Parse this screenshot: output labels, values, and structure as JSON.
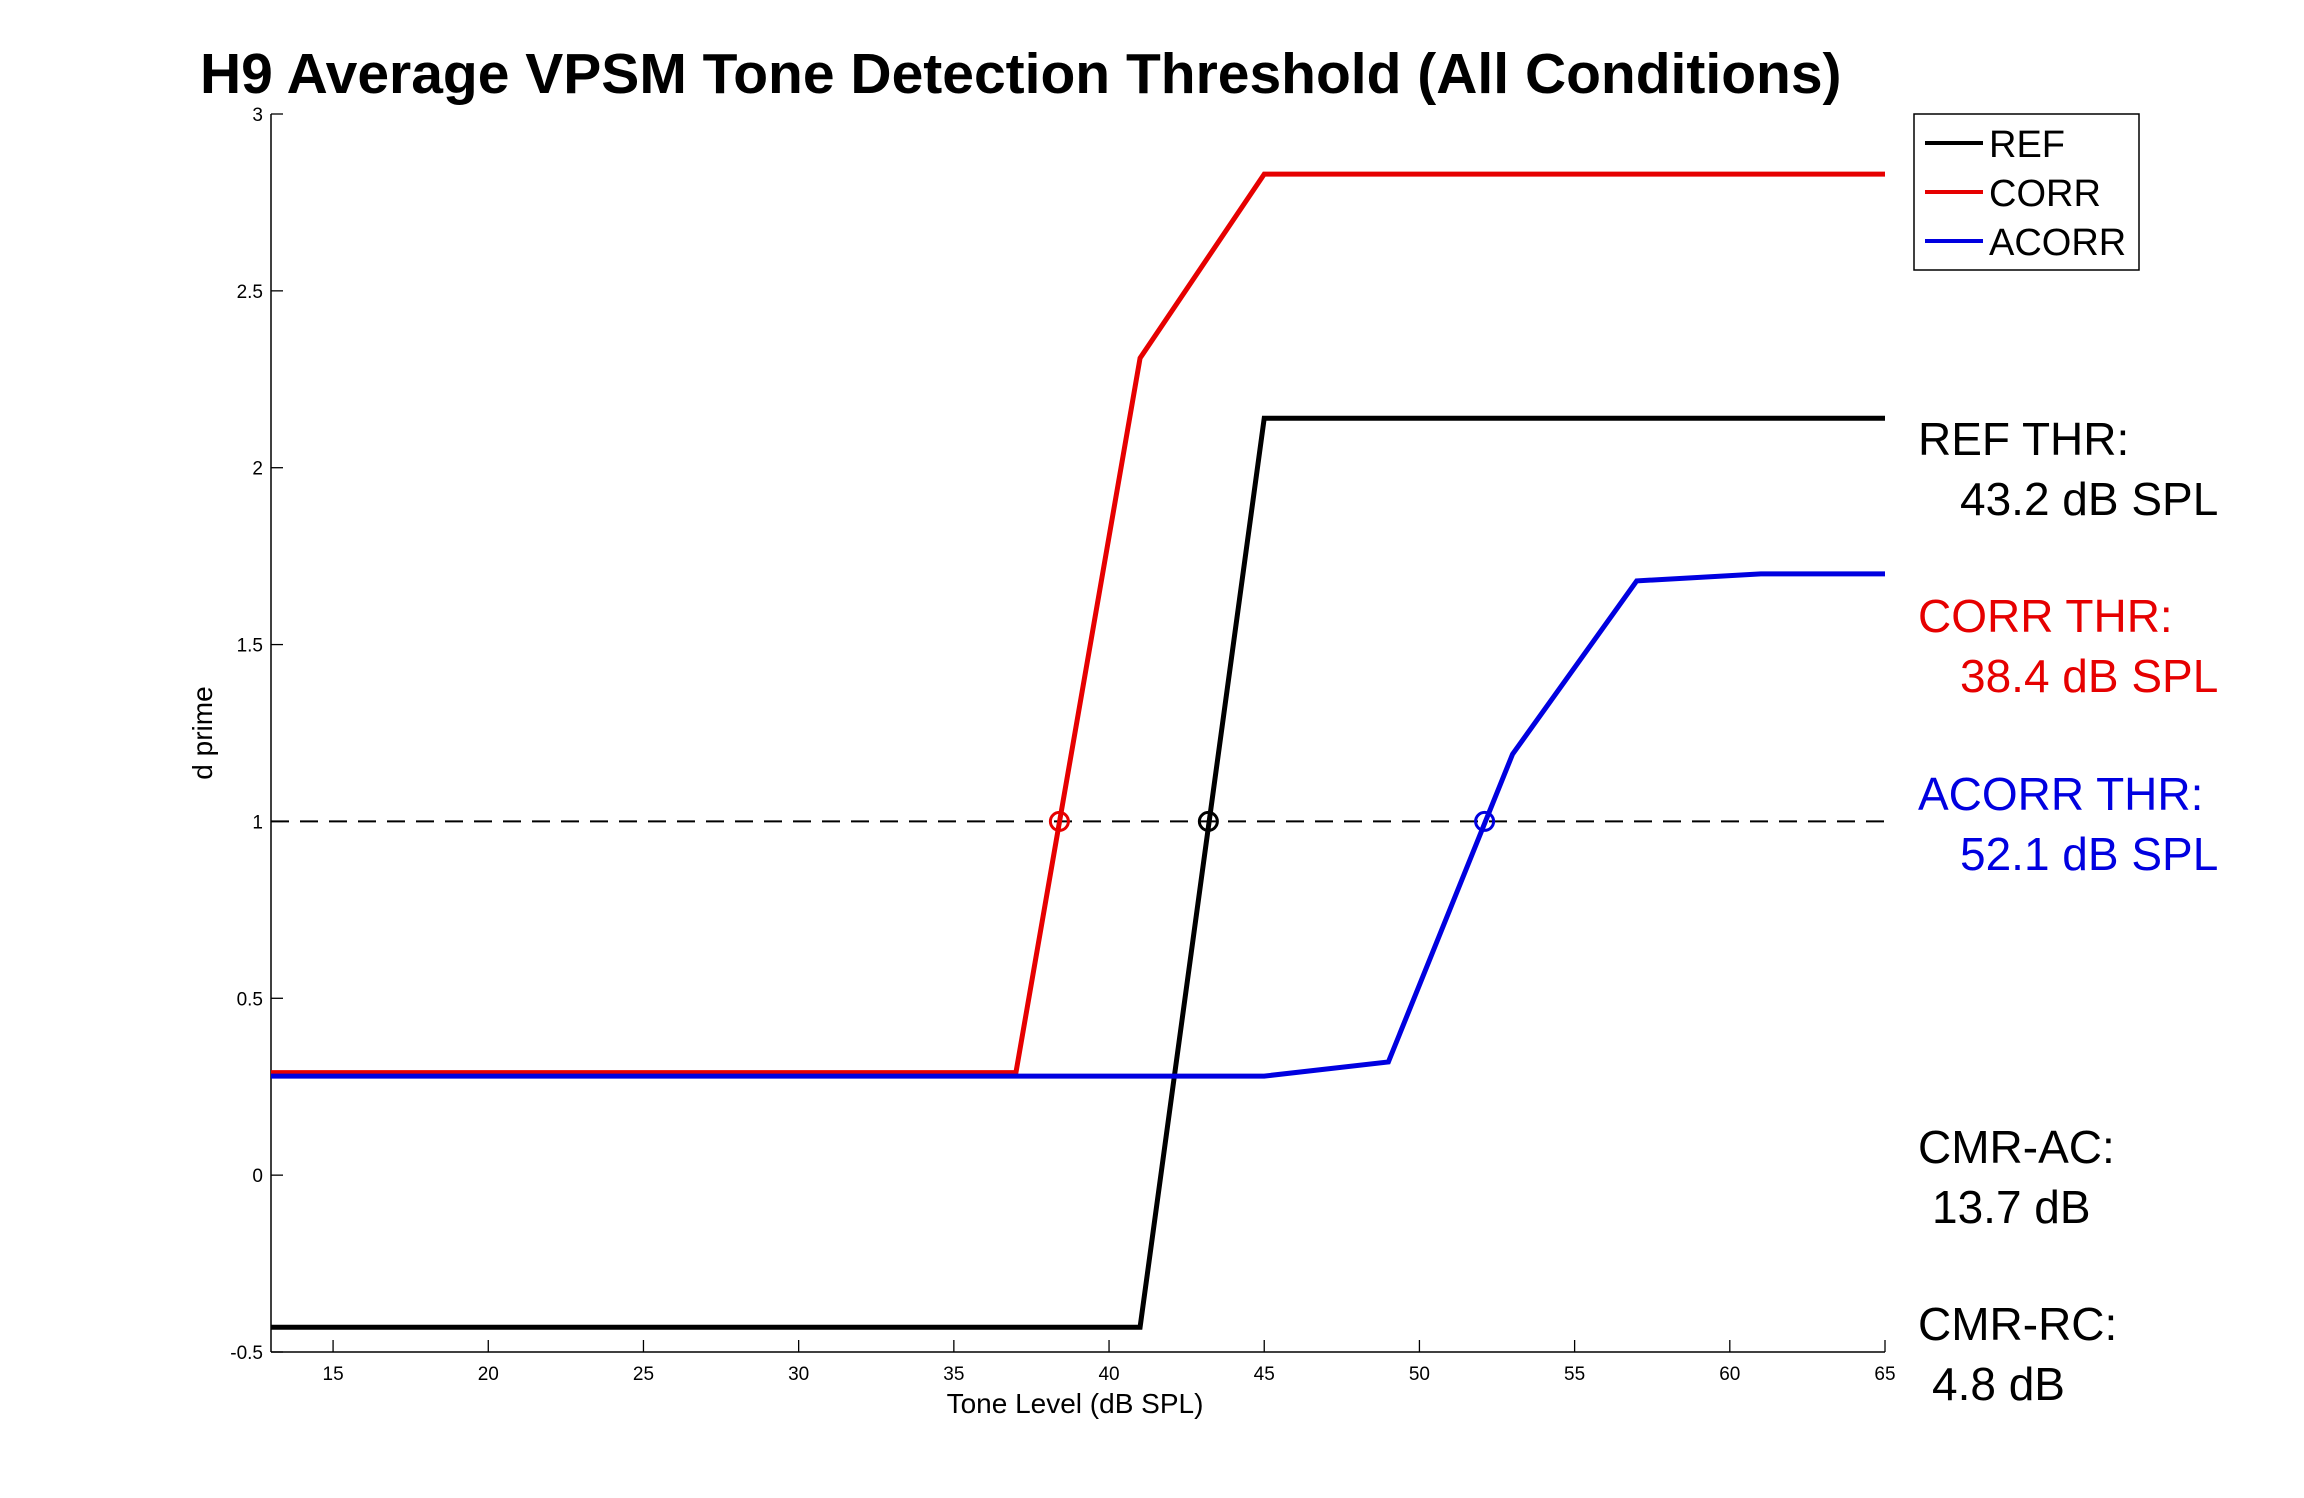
{
  "chart_data": {
    "type": "line",
    "title": "H9 Average VPSM Tone Detection Threshold (All Conditions)",
    "xlabel": "Tone Level (dB SPL)",
    "ylabel": "d prime",
    "xlim": [
      13,
      65
    ],
    "ylim": [
      -0.5,
      3
    ],
    "xticks": [
      "15",
      "20",
      "25",
      "30",
      "35",
      "40",
      "45",
      "50",
      "55",
      "60",
      "65"
    ],
    "yticks": [
      "-0.5",
      "0",
      "0.5",
      "1",
      "1.5",
      "2",
      "2.5",
      "3"
    ],
    "grid": false,
    "legend_position": "top-right",
    "reference_line": {
      "y": 1,
      "style": "dashed",
      "color": "#000000"
    },
    "series": [
      {
        "name": "REF",
        "color": "#000000",
        "x": [
          13,
          41,
          45,
          65
        ],
        "y": [
          -0.43,
          -0.43,
          2.14,
          2.14
        ],
        "threshold": {
          "x": 43.2,
          "y": 1
        }
      },
      {
        "name": "CORR",
        "color": "#e60000",
        "x": [
          13,
          37,
          41,
          45,
          65
        ],
        "y": [
          0.29,
          0.29,
          2.31,
          2.83,
          2.83
        ],
        "threshold": {
          "x": 38.4,
          "y": 1
        }
      },
      {
        "name": "ACORR",
        "color": "#0000e0",
        "x": [
          13,
          45,
          49,
          53,
          57,
          61,
          65
        ],
        "y": [
          0.28,
          0.28,
          0.32,
          1.19,
          1.68,
          1.7,
          1.7
        ],
        "threshold": {
          "x": 52.1,
          "y": 1
        }
      }
    ],
    "annotations": [
      {
        "line1": "REF THR:",
        "line2": "43.2 dB SPL",
        "color": "#000000"
      },
      {
        "line1": "CORR THR:",
        "line2": "38.4 dB SPL",
        "color": "#e60000"
      },
      {
        "line1": "ACORR THR:",
        "line2": "52.1 dB SPL",
        "color": "#0000e0"
      },
      {
        "line1": "CMR-AC:",
        "line2": "13.7 dB",
        "color": "#000000"
      },
      {
        "line1": "CMR-RC:",
        "line2": "4.8 dB",
        "color": "#000000"
      }
    ]
  }
}
